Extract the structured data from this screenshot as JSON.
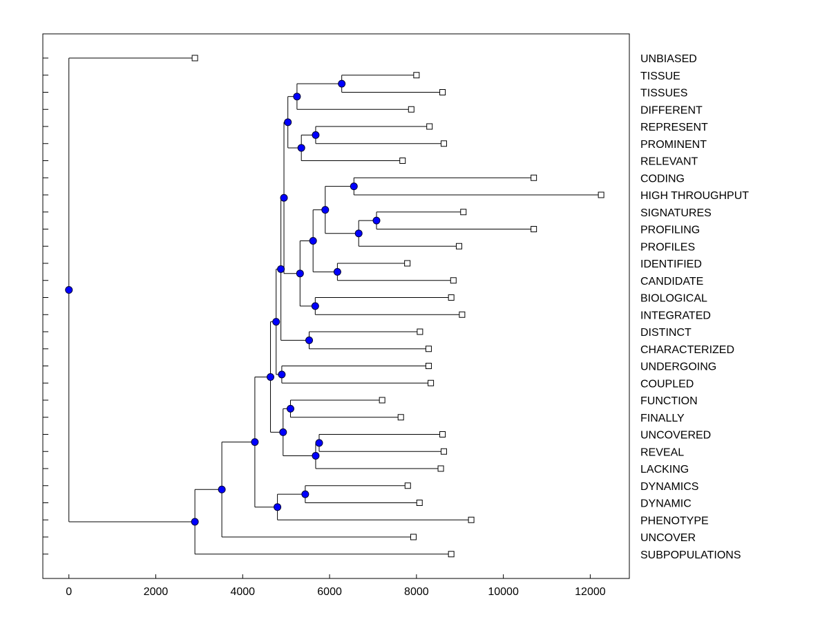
{
  "chart_data": {
    "type": "dendrogram",
    "orientation": "horizontal",
    "xticks": [
      0,
      2000,
      4000,
      6000,
      8000,
      10000,
      12000
    ],
    "xlim": [
      -600,
      12900
    ],
    "colors": {
      "node": "#0000ff",
      "line": "#000000",
      "leaf_marker": "#ffffff"
    },
    "leaves": [
      {
        "label": "UNBIASED",
        "x": 2900
      },
      {
        "label": "TISSUE",
        "x": 8000
      },
      {
        "label": "TISSUES",
        "x": 8600
      },
      {
        "label": "DIFFERENT",
        "x": 7880
      },
      {
        "label": "REPRESENT",
        "x": 8300
      },
      {
        "label": "PROMINENT",
        "x": 8630
      },
      {
        "label": "RELEVANT",
        "x": 7680
      },
      {
        "label": "CODING",
        "x": 10700
      },
      {
        "label": "HIGH THROUGHPUT",
        "x": 12250
      },
      {
        "label": "SIGNATURES",
        "x": 9080
      },
      {
        "label": "PROFILING",
        "x": 10700
      },
      {
        "label": "PROFILES",
        "x": 8980
      },
      {
        "label": "IDENTIFIED",
        "x": 7790
      },
      {
        "label": "CANDIDATE",
        "x": 8850
      },
      {
        "label": "BIOLOGICAL",
        "x": 8800
      },
      {
        "label": "INTEGRATED",
        "x": 9050
      },
      {
        "label": "DISTINCT",
        "x": 8080
      },
      {
        "label": "CHARACTERIZED",
        "x": 8280
      },
      {
        "label": "UNDERGOING",
        "x": 8280
      },
      {
        "label": "COUPLED",
        "x": 8330
      },
      {
        "label": "FUNCTION",
        "x": 7210
      },
      {
        "label": "FINALLY",
        "x": 7640
      },
      {
        "label": "UNCOVERED",
        "x": 8600
      },
      {
        "label": "REVEAL",
        "x": 8630
      },
      {
        "label": "LACKING",
        "x": 8560
      },
      {
        "label": "DYNAMICS",
        "x": 7800
      },
      {
        "label": "DYNAMIC",
        "x": 8070
      },
      {
        "label": "PHENOTYPE",
        "x": 9260
      },
      {
        "label": "UNCOVER",
        "x": 7930
      },
      {
        "label": "SUBPOPULATIONS",
        "x": 8800
      }
    ],
    "merges": [
      {
        "id": "n1",
        "x": 6280,
        "children": [
          "L1",
          "L2"
        ]
      },
      {
        "id": "n2",
        "x": 5250,
        "children": [
          "n1",
          "L3"
        ]
      },
      {
        "id": "n3",
        "x": 5680,
        "children": [
          "L4",
          "L5"
        ]
      },
      {
        "id": "n4",
        "x": 5350,
        "children": [
          "n3",
          "L6"
        ]
      },
      {
        "id": "n5",
        "x": 5040,
        "children": [
          "n2",
          "n4"
        ]
      },
      {
        "id": "n6",
        "x": 6560,
        "children": [
          "L7",
          "L8"
        ]
      },
      {
        "id": "n7",
        "x": 7080,
        "children": [
          "L9",
          "L10"
        ]
      },
      {
        "id": "n8",
        "x": 6670,
        "children": [
          "n7",
          "L11"
        ]
      },
      {
        "id": "n9",
        "x": 5900,
        "children": [
          "n6",
          "n8"
        ]
      },
      {
        "id": "n10",
        "x": 6180,
        "children": [
          "L12",
          "L13"
        ]
      },
      {
        "id": "n11",
        "x": 5620,
        "children": [
          "n9",
          "n10"
        ]
      },
      {
        "id": "n12",
        "x": 5670,
        "children": [
          "L14",
          "L15"
        ]
      },
      {
        "id": "n13",
        "x": 5320,
        "children": [
          "n11",
          "n12"
        ]
      },
      {
        "id": "n14",
        "x": 4950,
        "children": [
          "n5",
          "n13"
        ]
      },
      {
        "id": "n15",
        "x": 5530,
        "children": [
          "L16",
          "L17"
        ]
      },
      {
        "id": "n16",
        "x": 4880,
        "children": [
          "n14",
          "n15"
        ]
      },
      {
        "id": "n17",
        "x": 4900,
        "children": [
          "L18",
          "L19"
        ]
      },
      {
        "id": "n18",
        "x": 4770,
        "children": [
          "n16",
          "n17"
        ]
      },
      {
        "id": "n19",
        "x": 5100,
        "children": [
          "L20",
          "L21"
        ]
      },
      {
        "id": "n20",
        "x": 5760,
        "children": [
          "L22",
          "L23"
        ]
      },
      {
        "id": "n21",
        "x": 5680,
        "children": [
          "n20",
          "L24"
        ]
      },
      {
        "id": "n22",
        "x": 4930,
        "children": [
          "n19",
          "n21"
        ]
      },
      {
        "id": "n23",
        "x": 4640,
        "children": [
          "n18",
          "n22"
        ]
      },
      {
        "id": "n24",
        "x": 5440,
        "children": [
          "L25",
          "L26"
        ]
      },
      {
        "id": "n25",
        "x": 4800,
        "children": [
          "n24",
          "L27"
        ]
      },
      {
        "id": "n26",
        "x": 4280,
        "children": [
          "n23",
          "n25"
        ]
      },
      {
        "id": "n27",
        "x": 3520,
        "children": [
          "n26",
          "L28"
        ]
      },
      {
        "id": "n28",
        "x": 2900,
        "children": [
          "n27",
          "L29"
        ]
      },
      {
        "id": "n29",
        "x": 0,
        "children": [
          "L0",
          "n28"
        ]
      }
    ]
  }
}
